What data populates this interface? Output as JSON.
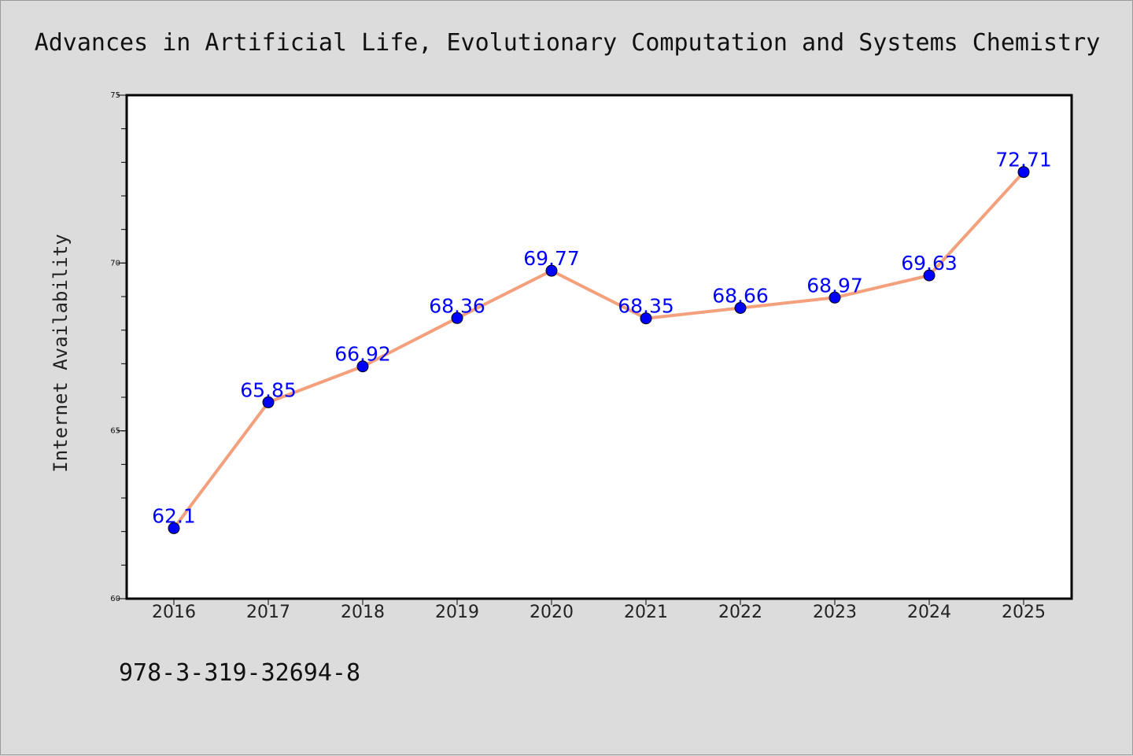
{
  "chart_data": {
    "type": "line",
    "title": "Advances in Artificial Life, Evolutionary Computation and Systems Chemistry",
    "xlabel": "",
    "ylabel": "Internet Availability",
    "categories": [
      "2016",
      "2017",
      "2018",
      "2019",
      "2020",
      "2021",
      "2022",
      "2023",
      "2024",
      "2025"
    ],
    "series": [
      {
        "values": [
          62.1,
          65.85,
          66.92,
          68.36,
          69.77,
          68.35,
          68.66,
          68.97,
          69.63,
          72.71
        ],
        "labels": [
          "62.1",
          "65.85",
          "66.92",
          "68.36",
          "69.77",
          "68.35",
          "68.66",
          "68.97",
          "69.63",
          "72.71"
        ]
      }
    ],
    "ylim": [
      60,
      75
    ],
    "yticks": [
      "60",
      "65",
      "70",
      "75"
    ],
    "grid": false,
    "legend": "none",
    "colors": {
      "line": "#f4a07c",
      "marker": "#0000ff",
      "label": "#0000ff",
      "background": "#dcdcdc",
      "plot_bg": "#ffffff"
    }
  },
  "footer": {
    "isbn": "978-3-319-32694-8"
  }
}
